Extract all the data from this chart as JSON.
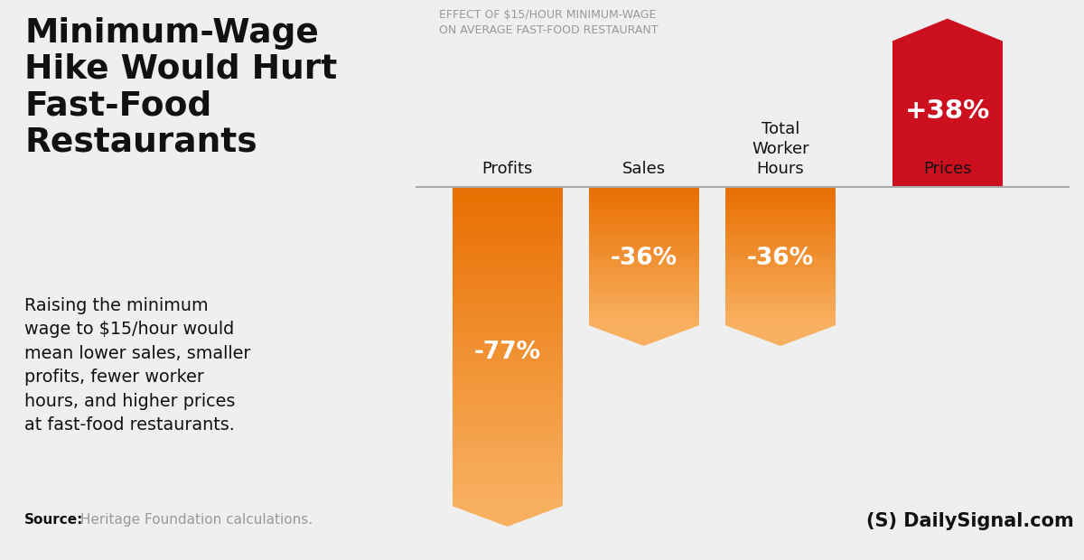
{
  "background_color": "#efefef",
  "title_lines": "Minimum-Wage\nHike Would Hurt\nFast-Food\nRestaurants",
  "subtitle": "Raising the minimum\nwage to $15/hour would\nmean lower sales, smaller\nprofits, fewer worker\nhours, and higher prices\nat fast-food restaurants.",
  "source_bold": "Source:",
  "source_text": " Heritage Foundation calculations.",
  "chart_title": "EFFECT OF $15/HOUR MINIMUM-WAGE\nON AVERAGE FAST-FOOD RESTAURANT",
  "categories": [
    "Profits",
    "Sales",
    "Total\nWorker\nHours",
    "Prices"
  ],
  "values": [
    -77,
    -36,
    -36,
    38
  ],
  "labels": [
    "-77%",
    "-36%",
    "-36%",
    "+38%"
  ],
  "orange_top": "#e86e00",
  "orange_bottom": "#f8b060",
  "red_color": "#cc1020",
  "watermark": "(S) DailySignal.com",
  "bar_centers": [
    1.4,
    3.2,
    5.0,
    7.2
  ],
  "bar_width": 1.45,
  "scale": 0.118
}
